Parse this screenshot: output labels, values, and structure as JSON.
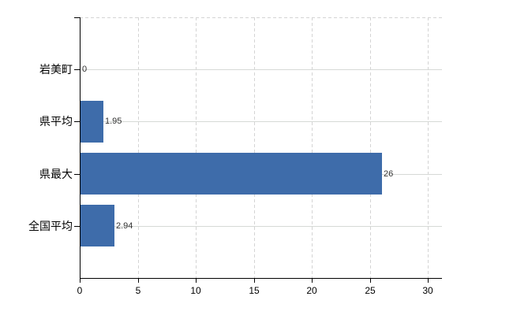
{
  "chart_data": {
    "type": "bar",
    "orientation": "horizontal",
    "title": "",
    "xlabel": "",
    "ylabel": "",
    "categories": [
      "岩美町",
      "県平均",
      "県最大",
      "全国平均"
    ],
    "values": [
      0,
      1.95,
      26,
      2.94
    ],
    "value_labels": [
      "0",
      "1.95",
      "26",
      "2.94"
    ],
    "x_ticks": [
      0,
      5,
      10,
      15,
      20,
      25,
      30
    ],
    "xlim": [
      0,
      31.2
    ],
    "grid": true,
    "legend": "none",
    "colors": {
      "bar": "#3e6caa",
      "grid_vertical": "#d4d4d4",
      "grid_horizontal": "#d6d9d6",
      "axis": "#000000",
      "category_text": "#000000",
      "value_text": "#333333",
      "background": "#ffffff"
    }
  }
}
